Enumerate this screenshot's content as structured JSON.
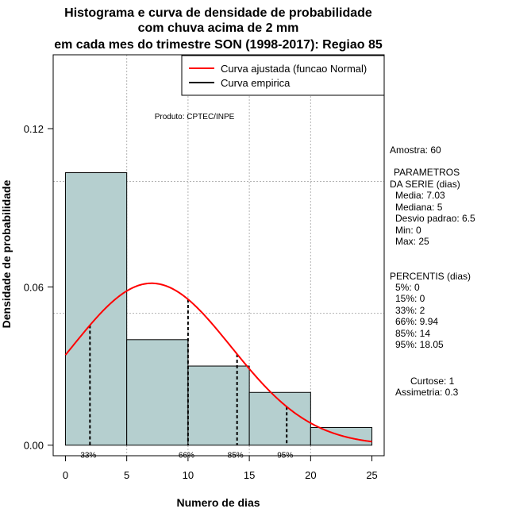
{
  "chart_data": {
    "type": "bar",
    "title": [
      "Histograma e curva de densidade de probabilidade",
      "com chuva acima de 2 mm",
      "em cada mes do trimestre SON (1998-2017): Regiao 85"
    ],
    "xlabel": "Numero de dias",
    "ylabel": "Densidade de probabilidade",
    "xlim": [
      -1,
      26
    ],
    "ylim": [
      -0.004,
      0.148
    ],
    "x_ticks": [
      0,
      5,
      10,
      15,
      20,
      25
    ],
    "x_tick_labels": [
      "0",
      "5",
      "10",
      "15",
      "20",
      "25"
    ],
    "y_ticks": [
      0.0,
      0.06,
      0.12
    ],
    "y_tick_labels": [
      "0.00",
      "0.06",
      "0.12"
    ],
    "grid_x": [
      5,
      10,
      15,
      20
    ],
    "grid_y": [
      0.05,
      0.1
    ],
    "bins": [
      {
        "from": 0,
        "to": 5,
        "density": 0.1033
      },
      {
        "from": 5,
        "to": 10,
        "density": 0.04
      },
      {
        "from": 10,
        "to": 15,
        "density": 0.03
      },
      {
        "from": 15,
        "to": 20,
        "density": 0.02
      },
      {
        "from": 20,
        "to": 25,
        "density": 0.0067
      }
    ],
    "fitted_curve": {
      "distribution": "normal",
      "mean": 7.03,
      "sd": 6.5,
      "from": 0,
      "to": 25
    },
    "percentile_marks": [
      {
        "x": 2,
        "label": "33%"
      },
      {
        "x": 10,
        "label": "66%"
      },
      {
        "x": 14,
        "label": "85%"
      },
      {
        "x": 18.05,
        "label": "95%"
      }
    ],
    "legend": {
      "position": "top-right",
      "entries": [
        {
          "label": "Curva ajustada (funcao Normal)",
          "color": "#ff0000"
        },
        {
          "label": "Curva empirica",
          "color": "#000000"
        }
      ]
    },
    "annotation": "Produto: CPTEC/INPE",
    "colors": {
      "bar_fill": "#b5cfcf",
      "curve": "#ff0000",
      "grid": "#b3b3b3"
    }
  },
  "side_panel": {
    "sample": "Amostra: 60",
    "params_title": [
      "PARAMETROS",
      "DA SERIE (dias)"
    ],
    "params": [
      "Media: 7.03",
      "Mediana: 5",
      "Desvio padrao: 6.5",
      "Min: 0",
      "Max: 25"
    ],
    "percentiles_title": "PERCENTIS (dias)",
    "percentiles": [
      "5%: 0",
      "15%: 0",
      "33%: 2",
      "66%: 9.94",
      "85%: 14",
      "95%: 18.05"
    ],
    "kurtosis": "Curtose: 1",
    "skewness": "Assimetria: 0.3"
  }
}
